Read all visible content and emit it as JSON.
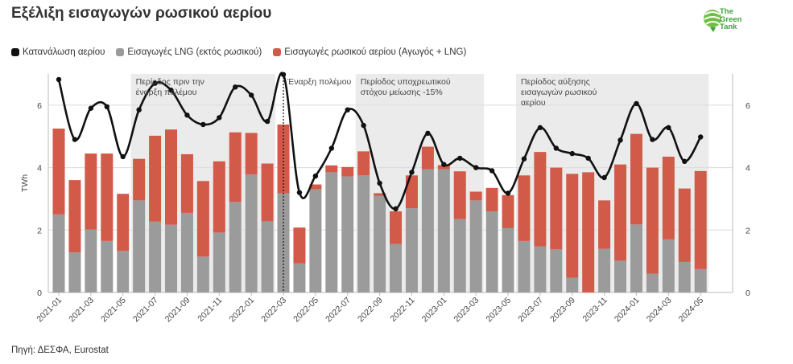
{
  "title": "Εξέλιξη εισαγωγών ρωσικού αερίου",
  "logo": {
    "line1": "The",
    "line2": "Green",
    "line3": "Tank"
  },
  "source": "Πηγή: ΔΕΣΦΑ, Eurostat",
  "legend": [
    {
      "label": "Κατανάλωση αερίου",
      "color": "#111111"
    },
    {
      "label": "Εισαγωγές LNG (εκτός ρωσικού)",
      "color": "#9b9b9b"
    },
    {
      "label": "Εισαγωγές ρωσικού αερίου (Αγωγός + LNG)",
      "color": "#d25a48"
    }
  ],
  "chart_data": {
    "type": "bar",
    "stacked": true,
    "ylabel": "TWh",
    "ylim": [
      0,
      7
    ],
    "yticks": [
      0,
      2,
      4,
      6
    ],
    "grid": true,
    "legend_position": "top-left",
    "categories": [
      "2021-01",
      "2021-02",
      "2021-03",
      "2021-04",
      "2021-05",
      "2021-06",
      "2021-07",
      "2021-08",
      "2021-09",
      "2021-10",
      "2021-11",
      "2021-12",
      "2022-01",
      "2022-02",
      "2022-03",
      "2022-04",
      "2022-05",
      "2022-06",
      "2022-07",
      "2022-08",
      "2022-09",
      "2022-10",
      "2022-11",
      "2022-12",
      "2023-01",
      "2023-02",
      "2023-03",
      "2023-04",
      "2023-05",
      "2023-06",
      "2023-07",
      "2023-08",
      "2023-09",
      "2023-10",
      "2023-11",
      "2023-12",
      "2024-01",
      "2024-02",
      "2024-03",
      "2024-04",
      "2024-05"
    ],
    "xtick_labels": [
      "2021-01",
      "2021-03",
      "2021-05",
      "2021-07",
      "2021-09",
      "2021-11",
      "2022-01",
      "2022-03",
      "2022-05",
      "2022-07",
      "2022-09",
      "2022-11",
      "2023-01",
      "2023-03",
      "2023-05",
      "2023-07",
      "2023-09",
      "2023-11",
      "2024-01",
      "2024-03",
      "2024-05"
    ],
    "series": [
      {
        "name": "Εισαγωγές LNG (εκτός ρωσικού)",
        "kind": "bar",
        "color": "#9b9b9b",
        "values": [
          2.5,
          1.28,
          2.02,
          1.65,
          1.33,
          2.95,
          2.27,
          2.17,
          2.55,
          1.15,
          1.92,
          2.9,
          3.78,
          2.28,
          3.18,
          0.93,
          3.3,
          3.85,
          3.72,
          3.75,
          3.1,
          1.55,
          2.7,
          3.95,
          3.95,
          2.35,
          2.95,
          2.6,
          2.06,
          1.65,
          1.48,
          1.38,
          0.47,
          0,
          1.4,
          1.02,
          2.18,
          0.6,
          1.7,
          0.98,
          0.75
        ]
      },
      {
        "name": "Εισαγωγές ρωσικού αερίου (Αγωγός + LNG)",
        "kind": "bar",
        "color": "#d25a48",
        "values": [
          2.75,
          2.32,
          2.43,
          2.8,
          1.83,
          1.33,
          2.75,
          3.05,
          1.88,
          2.42,
          2.28,
          2.23,
          1.33,
          1.85,
          2.2,
          1.15,
          0.16,
          0.22,
          0.3,
          0.77,
          0.08,
          1.05,
          1.05,
          0.72,
          0.13,
          1.53,
          0.28,
          0.75,
          1.06,
          2.1,
          3.02,
          2.62,
          3.33,
          3.85,
          1.55,
          3.08,
          2.9,
          3.4,
          2.65,
          2.35,
          3.14
        ]
      },
      {
        "name": "Κατανάλωση αερίου",
        "kind": "line",
        "color": "#111111",
        "values": [
          6.82,
          4.9,
          5.9,
          5.95,
          4.35,
          5.85,
          6.7,
          6.48,
          5.68,
          5.38,
          5.6,
          6.58,
          6.32,
          5.48,
          6.98,
          3.2,
          3.73,
          4.62,
          5.85,
          5.35,
          3.5,
          2.68,
          3.85,
          5.1,
          4.1,
          4.3,
          4.0,
          3.9,
          3.18,
          4.28,
          5.28,
          4.62,
          4.45,
          4.3,
          3.68,
          4.88,
          6.05,
          4.9,
          5.28,
          4.2,
          4.98
        ]
      }
    ],
    "periods": [
      {
        "label_lines": [
          "Περίοδος πριν την",
          "έναρξη πολέμου"
        ],
        "from": "2021-06",
        "to": "2022-02",
        "shaded": true
      },
      {
        "label_lines": [
          "Έναρξη πολέμου"
        ],
        "at": "2022-03",
        "marker": "dotted-line"
      },
      {
        "label_lines": [
          "Περίοδος υποχρεωτικού",
          "στόχου μείωσης -15%"
        ],
        "from": "2022-08",
        "to": "2023-03",
        "shaded": true
      },
      {
        "label_lines": [
          "Περίοδος αύξησης",
          "εισαγωγών ρωσικού",
          "αερίου"
        ],
        "from": "2023-06",
        "to": "2024-05",
        "shaded": true
      }
    ]
  }
}
